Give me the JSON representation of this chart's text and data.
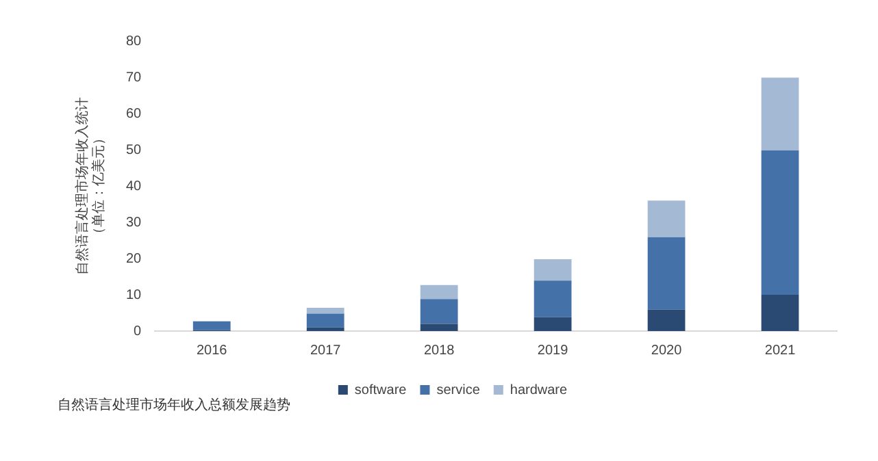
{
  "chart_data": {
    "type": "bar",
    "stacked": true,
    "ylabel": "自然语言处理市场年收入统计（单位：亿美元）",
    "categories": [
      "2016",
      "2017",
      "2018",
      "2019",
      "2020",
      "2021"
    ],
    "series": [
      {
        "name": "software",
        "color": "#2a4a73",
        "values": [
          0.3,
          1,
          2,
          3.8,
          5.9,
          10
        ]
      },
      {
        "name": "service",
        "color": "#4472a8",
        "values": [
          2.4,
          3.8,
          6.8,
          10.1,
          20,
          39.8
        ]
      },
      {
        "name": "hardware",
        "color": "#a3b9d4",
        "values": [
          0,
          1.6,
          3.9,
          5.9,
          10.1,
          20.1
        ]
      }
    ],
    "ylim": [
      0,
      80
    ],
    "yticks": [
      0,
      10,
      20,
      30,
      40,
      50,
      60,
      70,
      80
    ],
    "grid": false,
    "legend": "bottom",
    "annotations": [
      "自然语言处理市场年收入总额发展趋势"
    ]
  }
}
